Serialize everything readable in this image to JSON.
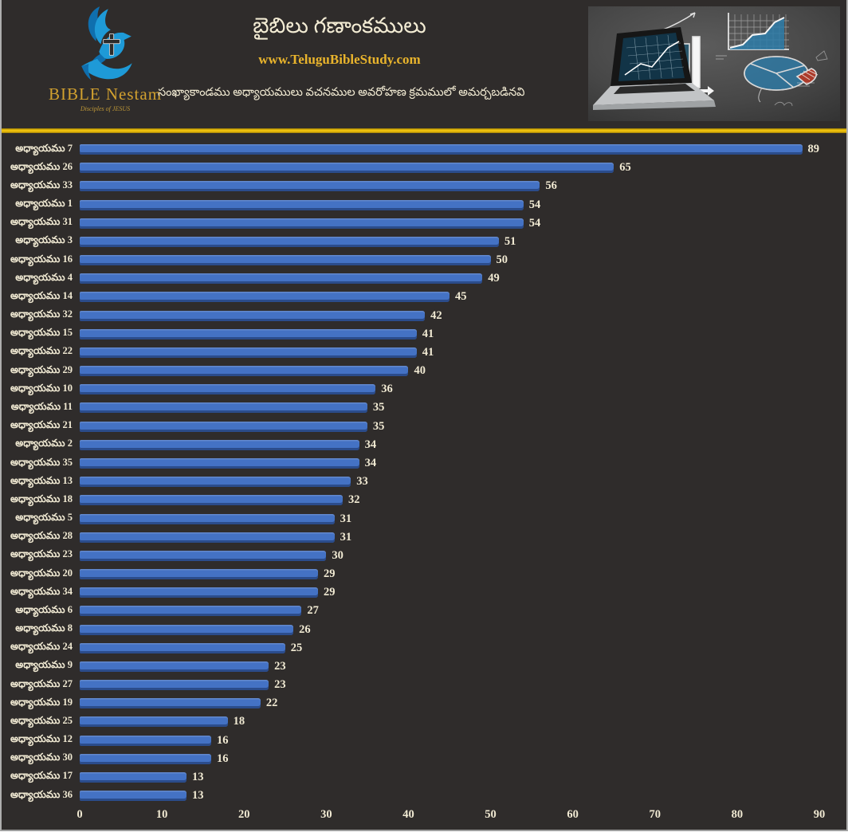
{
  "header": {
    "brand": "BIBLE Nestam",
    "tagline": "Disciples of JESUS",
    "logo_icon": "dove-with-cross-and-hand",
    "title": "బైబిలు గణాంకములు",
    "website": "www.TeluguBibleStudy.com",
    "subtitle": "సంఖ్యాకాండము అధ్యాయములు వచనముల అవరోహణ క్రమములో అమర్చబడినవి"
  },
  "chart_data": {
    "type": "bar",
    "orientation": "horizontal",
    "title": "బైబిలు గణాంకములు",
    "xlabel": "",
    "ylabel": "",
    "categories": [
      "అధ్యాయము 7",
      "అధ్యాయము 26",
      "అధ్యాయము 33",
      "అధ్యాయము 1",
      "అధ్యాయము 31",
      "అధ్యాయము 3",
      "అధ్యాయము 16",
      "అధ్యాయము 4",
      "అధ్యాయము 14",
      "అధ్యాయము 32",
      "అధ్యాయము 15",
      "అధ్యాయము 22",
      "అధ్యాయము 29",
      "అధ్యాయము 10",
      "అధ్యాయము 11",
      "అధ్యాయము 21",
      "అధ్యాయము 2",
      "అధ్యాయము 35",
      "అధ్యాయము 13",
      "అధ్యాయము 18",
      "అధ్యాయము 5",
      "అధ్యాయము 28",
      "అధ్యాయము 23",
      "అధ్యాయము 20",
      "అధ్యాయము 34",
      "అధ్యాయము 6",
      "అధ్యాయము 8",
      "అధ్యాయము 24",
      "అధ్యాయము 9",
      "అధ్యాయము 27",
      "అధ్యాయము 19",
      "అధ్యాయము 25",
      "అధ్యాయము 12",
      "అధ్యాయము 30",
      "అధ్యాయము 17",
      "అధ్యాయము 36"
    ],
    "values": [
      89,
      65,
      56,
      54,
      54,
      51,
      50,
      49,
      45,
      42,
      41,
      41,
      40,
      36,
      35,
      35,
      34,
      34,
      33,
      32,
      31,
      31,
      30,
      29,
      29,
      27,
      26,
      25,
      23,
      23,
      22,
      18,
      16,
      16,
      13,
      13
    ],
    "value_labels_shown": true,
    "xlim": [
      0,
      90
    ],
    "x_ticks": [
      0,
      10,
      20,
      30,
      40,
      50,
      60,
      70,
      80,
      90
    ],
    "grid": false,
    "legend": "none",
    "bar_color": "#4472c4"
  },
  "colors": {
    "background": "#2f2c2b",
    "bar": "#4472c4",
    "text_cream": "#f1ead3",
    "gold_accent": "#e9b42c",
    "divider_gold": "#e7b70a",
    "brand_gold": "#d2a12f",
    "logo_blue": "#1e9ad7",
    "logo_blue_dark": "#0f6fae"
  }
}
